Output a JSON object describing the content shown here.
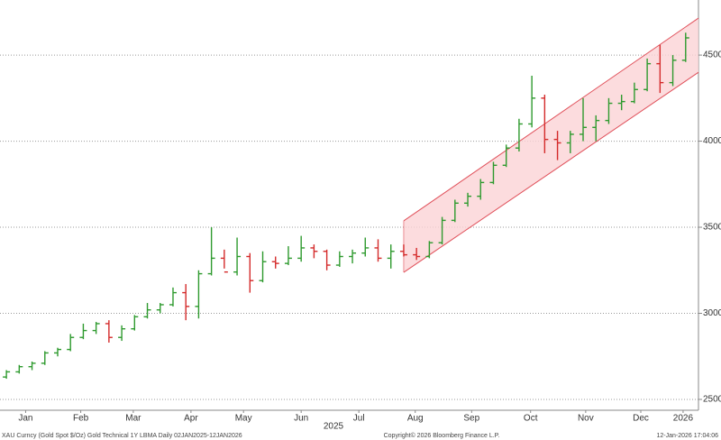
{
  "chart_data": {
    "type": "ohlc",
    "open": [
      2630,
      2660,
      2690,
      2710,
      2770,
      2790,
      2860,
      2900,
      2940,
      2860,
      2910,
      2980,
      3020,
      3050,
      3120,
      3040,
      3230,
      3320,
      3240,
      3330,
      3190,
      3300,
      3290,
      3320,
      3380,
      3360,
      3280,
      3330,
      3350,
      3380,
      3320,
      3360,
      3340,
      3330,
      3410,
      3540,
      3640,
      3680,
      3760,
      3860,
      3960,
      4100,
      4250,
      4010,
      3990,
      4040,
      4080,
      4120,
      4220,
      4230,
      4300,
      4450,
      4340,
      4470
    ],
    "high": [
      2670,
      2700,
      2720,
      2780,
      2800,
      2880,
      2940,
      2950,
      2960,
      2930,
      2990,
      3060,
      3060,
      3150,
      3170,
      3250,
      3500,
      3370,
      3440,
      3350,
      3360,
      3330,
      3390,
      3450,
      3400,
      3370,
      3360,
      3370,
      3440,
      3430,
      3400,
      3400,
      3380,
      3420,
      3560,
      3660,
      3700,
      3780,
      3880,
      3980,
      4130,
      4380,
      4270,
      4060,
      4060,
      4250,
      4150,
      4250,
      4270,
      4340,
      4480,
      4560,
      4500,
      4630
    ],
    "low": [
      2620,
      2650,
      2670,
      2700,
      2750,
      2780,
      2850,
      2880,
      2830,
      2840,
      2900,
      2970,
      3000,
      3040,
      2960,
      2970,
      3220,
      3260,
      3220,
      3120,
      3180,
      3260,
      3280,
      3300,
      3320,
      3250,
      3270,
      3290,
      3330,
      3300,
      3260,
      3330,
      3310,
      3320,
      3400,
      3530,
      3620,
      3660,
      3750,
      3850,
      3940,
      4080,
      3930,
      3890,
      3930,
      4000,
      4000,
      4100,
      4180,
      4220,
      4290,
      4280,
      4320,
      4460
    ],
    "close": [
      2660,
      2690,
      2710,
      2770,
      2790,
      2860,
      2900,
      2940,
      2860,
      2910,
      2980,
      3020,
      3050,
      3120,
      3040,
      3230,
      3320,
      3240,
      3330,
      3190,
      3300,
      3290,
      3320,
      3380,
      3360,
      3280,
      3330,
      3350,
      3380,
      3320,
      3360,
      3340,
      3330,
      3410,
      3540,
      3640,
      3680,
      3760,
      3860,
      3960,
      4100,
      4250,
      4010,
      3990,
      4040,
      4080,
      4120,
      4220,
      4230,
      4300,
      4450,
      4340,
      4470,
      4600
    ],
    "up_color": "#2e9a2e",
    "down_color": "#d42a2a",
    "channel": {
      "x": [
        31.5,
        54.5
      ],
      "upper": [
        3537,
        4715
      ],
      "lower": [
        3238,
        4400
      ],
      "fill": "#fbd3d6",
      "line": "#e0505a"
    },
    "xlim": [
      0,
      54.5
    ],
    "xticks": [
      {
        "value": 2,
        "label": "Jan"
      },
      {
        "value": 6.3,
        "label": "Feb"
      },
      {
        "value": 10.4,
        "label": "Mar"
      },
      {
        "value": 14.9,
        "label": "Apr"
      },
      {
        "value": 19,
        "label": "May"
      },
      {
        "value": 23.5,
        "label": "Jun"
      },
      {
        "value": 28,
        "label": "Jul"
      },
      {
        "value": 32.4,
        "label": "Aug"
      },
      {
        "value": 36.8,
        "label": "Sep"
      },
      {
        "value": 41.4,
        "label": "Oct"
      },
      {
        "value": 45.7,
        "label": "Nov"
      },
      {
        "value": 50,
        "label": "Dec"
      },
      {
        "value": 53.3,
        "label": "2026"
      }
    ],
    "year_label": "2025",
    "ylim": [
      2437,
      4820
    ],
    "yticks": [
      2500,
      3000,
      3500,
      4000,
      4500
    ],
    "grid": true,
    "footer_left": "XAU Curncy (Gold Spot  $/Oz) Gold Technical 1Y LBMA Daily 02JAN2025-12JAN2026",
    "footer_center": "Copyright© 2026 Bloomberg Finance L.P.",
    "footer_right": "12-Jan-2026 17:04:06"
  }
}
